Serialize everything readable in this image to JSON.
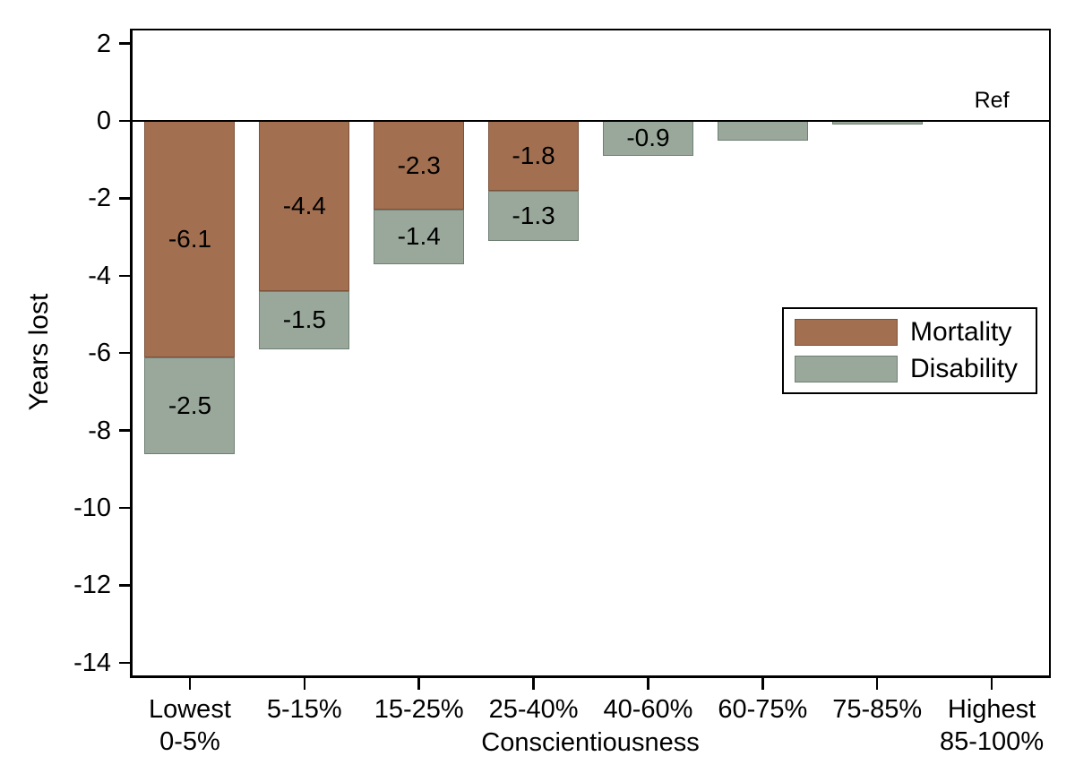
{
  "chart_data": {
    "type": "bar",
    "stacked": true,
    "orientation": "vertical",
    "title": "",
    "xlabel": "Conscientiousness",
    "ylabel": "Years lost",
    "ylim": [
      -14.3,
      2.3
    ],
    "yticks": [
      2,
      0,
      -2,
      -4,
      -6,
      -8,
      -10,
      -12,
      -14
    ],
    "grid": false,
    "legend_position": "inside-right",
    "categories": [
      {
        "lines": [
          "Lowest",
          "0-5%"
        ]
      },
      {
        "lines": [
          "5-15%"
        ]
      },
      {
        "lines": [
          "15-25%"
        ]
      },
      {
        "lines": [
          "25-40%"
        ]
      },
      {
        "lines": [
          "40-60%"
        ]
      },
      {
        "lines": [
          "60-75%"
        ]
      },
      {
        "lines": [
          "75-85%"
        ]
      },
      {
        "lines": [
          "Highest",
          "85-100%"
        ]
      }
    ],
    "series": [
      {
        "name": "Mortality",
        "color": "#a26f51",
        "border_color": "#7c523a",
        "values": [
          -6.1,
          -4.4,
          -2.3,
          -1.8,
          0,
          0,
          0,
          0
        ],
        "labels": [
          "-6.1",
          "-4.4",
          "-2.3",
          "-1.8",
          "",
          "",
          "",
          ""
        ]
      },
      {
        "name": "Disability",
        "color": "#99a89b",
        "border_color": "#6f7f73",
        "values": [
          -2.5,
          -1.5,
          -1.4,
          -1.3,
          -0.9,
          -0.5,
          -0.1,
          0
        ],
        "labels": [
          "-2.5",
          "-1.5",
          "-1.4",
          "-1.3",
          "-0.9",
          "",
          "",
          ""
        ]
      }
    ],
    "annotations": [
      {
        "text": "Ref",
        "category_index": 7,
        "position": "above-zero-line"
      }
    ],
    "colors": {
      "axis": "#000000",
      "background": "#ffffff",
      "text": "#000000"
    }
  }
}
